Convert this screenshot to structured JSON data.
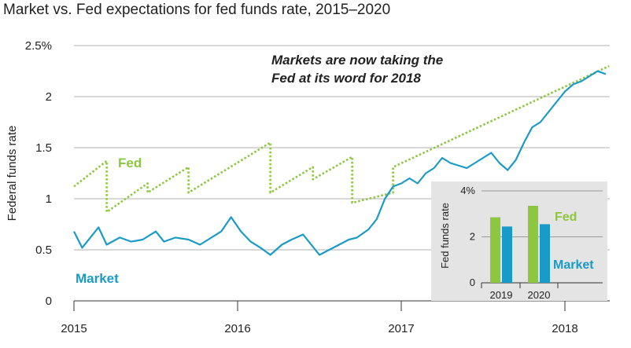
{
  "title": "Market vs. Fed expectations for fed funds rate, 2015–2020",
  "colors": {
    "fed": "#8dc63f",
    "market": "#1a9bc7",
    "inset_bg": "#e4e4e4",
    "grid": "#b0b0b0"
  },
  "chart_data": [
    {
      "type": "line",
      "ylabel": "Federal funds rate",
      "ylim": [
        0,
        2.5
      ],
      "y_ticks": [
        "0",
        "0.5",
        "1",
        "1.5",
        "2",
        "2.5%"
      ],
      "x_ticks": [
        "2015",
        "2016",
        "2017",
        "2018"
      ],
      "xlim": [
        2015,
        2018.3
      ],
      "annotation": [
        "Markets are now taking the",
        "Fed at its word for 2018"
      ],
      "series": [
        {
          "name": "Fed",
          "style": "dotted",
          "points": [
            [
              2015.0,
              1.12
            ],
            [
              2015.2,
              1.37
            ],
            [
              2015.2,
              0.87
            ],
            [
              2015.45,
              1.15
            ],
            [
              2015.45,
              1.06
            ],
            [
              2015.7,
              1.31
            ],
            [
              2015.7,
              1.06
            ],
            [
              2016.2,
              1.55
            ],
            [
              2016.2,
              1.06
            ],
            [
              2016.46,
              1.31
            ],
            [
              2016.46,
              1.19
            ],
            [
              2016.7,
              1.41
            ],
            [
              2016.7,
              0.96
            ],
            [
              2016.95,
              1.06
            ],
            [
              2016.95,
              1.31
            ],
            [
              2018.27,
              2.3
            ]
          ]
        },
        {
          "name": "Market",
          "style": "solid",
          "points": [
            [
              2015.0,
              0.68
            ],
            [
              2015.05,
              0.52
            ],
            [
              2015.1,
              0.62
            ],
            [
              2015.15,
              0.72
            ],
            [
              2015.2,
              0.55
            ],
            [
              2015.28,
              0.62
            ],
            [
              2015.35,
              0.58
            ],
            [
              2015.42,
              0.6
            ],
            [
              2015.5,
              0.68
            ],
            [
              2015.55,
              0.58
            ],
            [
              2015.62,
              0.62
            ],
            [
              2015.7,
              0.6
            ],
            [
              2015.77,
              0.55
            ],
            [
              2015.82,
              0.6
            ],
            [
              2015.9,
              0.68
            ],
            [
              2015.96,
              0.82
            ],
            [
              2016.02,
              0.68
            ],
            [
              2016.08,
              0.58
            ],
            [
              2016.14,
              0.52
            ],
            [
              2016.2,
              0.45
            ],
            [
              2016.27,
              0.55
            ],
            [
              2016.33,
              0.6
            ],
            [
              2016.4,
              0.65
            ],
            [
              2016.45,
              0.55
            ],
            [
              2016.5,
              0.45
            ],
            [
              2016.56,
              0.5
            ],
            [
              2016.62,
              0.55
            ],
            [
              2016.68,
              0.6
            ],
            [
              2016.73,
              0.62
            ],
            [
              2016.8,
              0.7
            ],
            [
              2016.85,
              0.8
            ],
            [
              2016.9,
              1.0
            ],
            [
              2016.95,
              1.12
            ],
            [
              2017.0,
              1.15
            ],
            [
              2017.05,
              1.2
            ],
            [
              2017.1,
              1.15
            ],
            [
              2017.15,
              1.25
            ],
            [
              2017.2,
              1.3
            ],
            [
              2017.25,
              1.4
            ],
            [
              2017.3,
              1.35
            ],
            [
              2017.4,
              1.3
            ],
            [
              2017.45,
              1.35
            ],
            [
              2017.5,
              1.4
            ],
            [
              2017.55,
              1.45
            ],
            [
              2017.6,
              1.35
            ],
            [
              2017.65,
              1.28
            ],
            [
              2017.7,
              1.38
            ],
            [
              2017.75,
              1.55
            ],
            [
              2017.8,
              1.7
            ],
            [
              2017.85,
              1.75
            ],
            [
              2017.9,
              1.85
            ],
            [
              2017.95,
              1.95
            ],
            [
              2018.0,
              2.05
            ],
            [
              2018.05,
              2.12
            ],
            [
              2018.1,
              2.15
            ],
            [
              2018.15,
              2.2
            ],
            [
              2018.2,
              2.25
            ],
            [
              2018.25,
              2.22
            ]
          ]
        }
      ]
    },
    {
      "type": "bar",
      "ylabel": "Fed funds rate",
      "ylim": [
        0,
        4
      ],
      "y_ticks": [
        "0",
        "2",
        "4%"
      ],
      "categories": [
        "2019",
        "2020"
      ],
      "series": [
        {
          "name": "Fed",
          "values": [
            2.85,
            3.35
          ]
        },
        {
          "name": "Market",
          "values": [
            2.45,
            2.55
          ]
        }
      ]
    }
  ]
}
